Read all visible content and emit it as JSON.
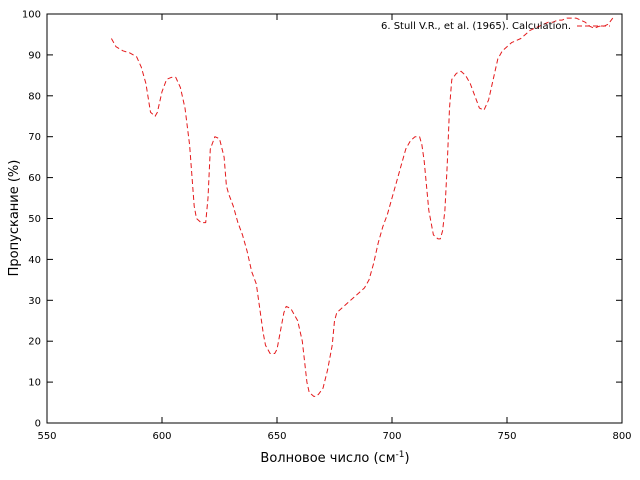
{
  "chart_data": {
    "type": "line",
    "title": "",
    "xlabel": "Волновое число (см",
    "xlabel_sup": "-1",
    "xlabel_end": ")",
    "ylabel": "Пропускание (%)",
    "xlim": [
      550,
      800
    ],
    "ylim": [
      0,
      100
    ],
    "x_ticks": [
      550,
      600,
      650,
      700,
      750,
      800
    ],
    "y_ticks": [
      0,
      10,
      20,
      30,
      40,
      50,
      60,
      70,
      80,
      90,
      100
    ],
    "grid": false,
    "legend_position": "top-right",
    "series": [
      {
        "name": "6. Stull V.R., et al. (1965). Calculation.",
        "color": "#e41a1c",
        "dash": "dashed",
        "x": [
          578,
          580,
          583,
          586,
          589,
          591,
          593,
          595,
          597,
          598,
          600,
          602,
          604,
          606,
          608,
          610,
          612,
          614,
          615,
          617,
          619,
          620,
          621,
          623,
          625,
          627,
          628,
          629,
          631,
          633,
          635,
          637,
          639,
          641,
          643,
          644,
          645,
          647,
          649,
          650,
          651,
          653,
          654,
          656,
          657,
          659,
          661,
          662,
          663,
          664,
          665,
          666,
          667,
          668,
          670,
          672,
          674,
          675,
          676,
          678,
          680,
          682,
          684,
          686,
          688,
          690,
          692,
          694,
          696,
          698,
          700,
          702,
          704,
          706,
          708,
          710,
          712,
          713,
          714,
          715,
          716,
          718,
          720,
          721,
          722,
          723,
          724,
          725,
          726,
          728,
          730,
          732,
          734,
          736,
          738,
          740,
          742,
          744,
          746,
          748,
          750,
          752,
          754,
          756,
          758,
          760,
          762,
          764,
          766,
          768,
          770,
          772,
          774,
          776,
          778,
          780,
          782,
          784,
          786,
          788,
          790,
          792,
          794,
          796
        ],
        "y": [
          94,
          92,
          91,
          90.5,
          89.5,
          87,
          83,
          76,
          75,
          76,
          81,
          84,
          84.5,
          84.5,
          82,
          77,
          68,
          53,
          50,
          49,
          49,
          55,
          67,
          70,
          69.5,
          65,
          58,
          56,
          53,
          49,
          46,
          42,
          37,
          34,
          26,
          22,
          19,
          17,
          17,
          18,
          21,
          27,
          28.5,
          28,
          27,
          25,
          20,
          15,
          10,
          7.5,
          7,
          6.5,
          6.5,
          7,
          8.5,
          13,
          19,
          25,
          27,
          28,
          29,
          30,
          31,
          32,
          33,
          35,
          39,
          44,
          48,
          51,
          55,
          59,
          63,
          67,
          69,
          70,
          70,
          68,
          64,
          58,
          52,
          46,
          45,
          45,
          47,
          52,
          63,
          77,
          84,
          85.5,
          86,
          85,
          83,
          80,
          77,
          76.5,
          79,
          84,
          89,
          91,
          92,
          93,
          93.5,
          94,
          95,
          96,
          96.5,
          97,
          97.5,
          98,
          98,
          98.5,
          98.5,
          99,
          99,
          99,
          98.5,
          98,
          97,
          96.5,
          97,
          97,
          97.5,
          99
        ]
      }
    ]
  }
}
